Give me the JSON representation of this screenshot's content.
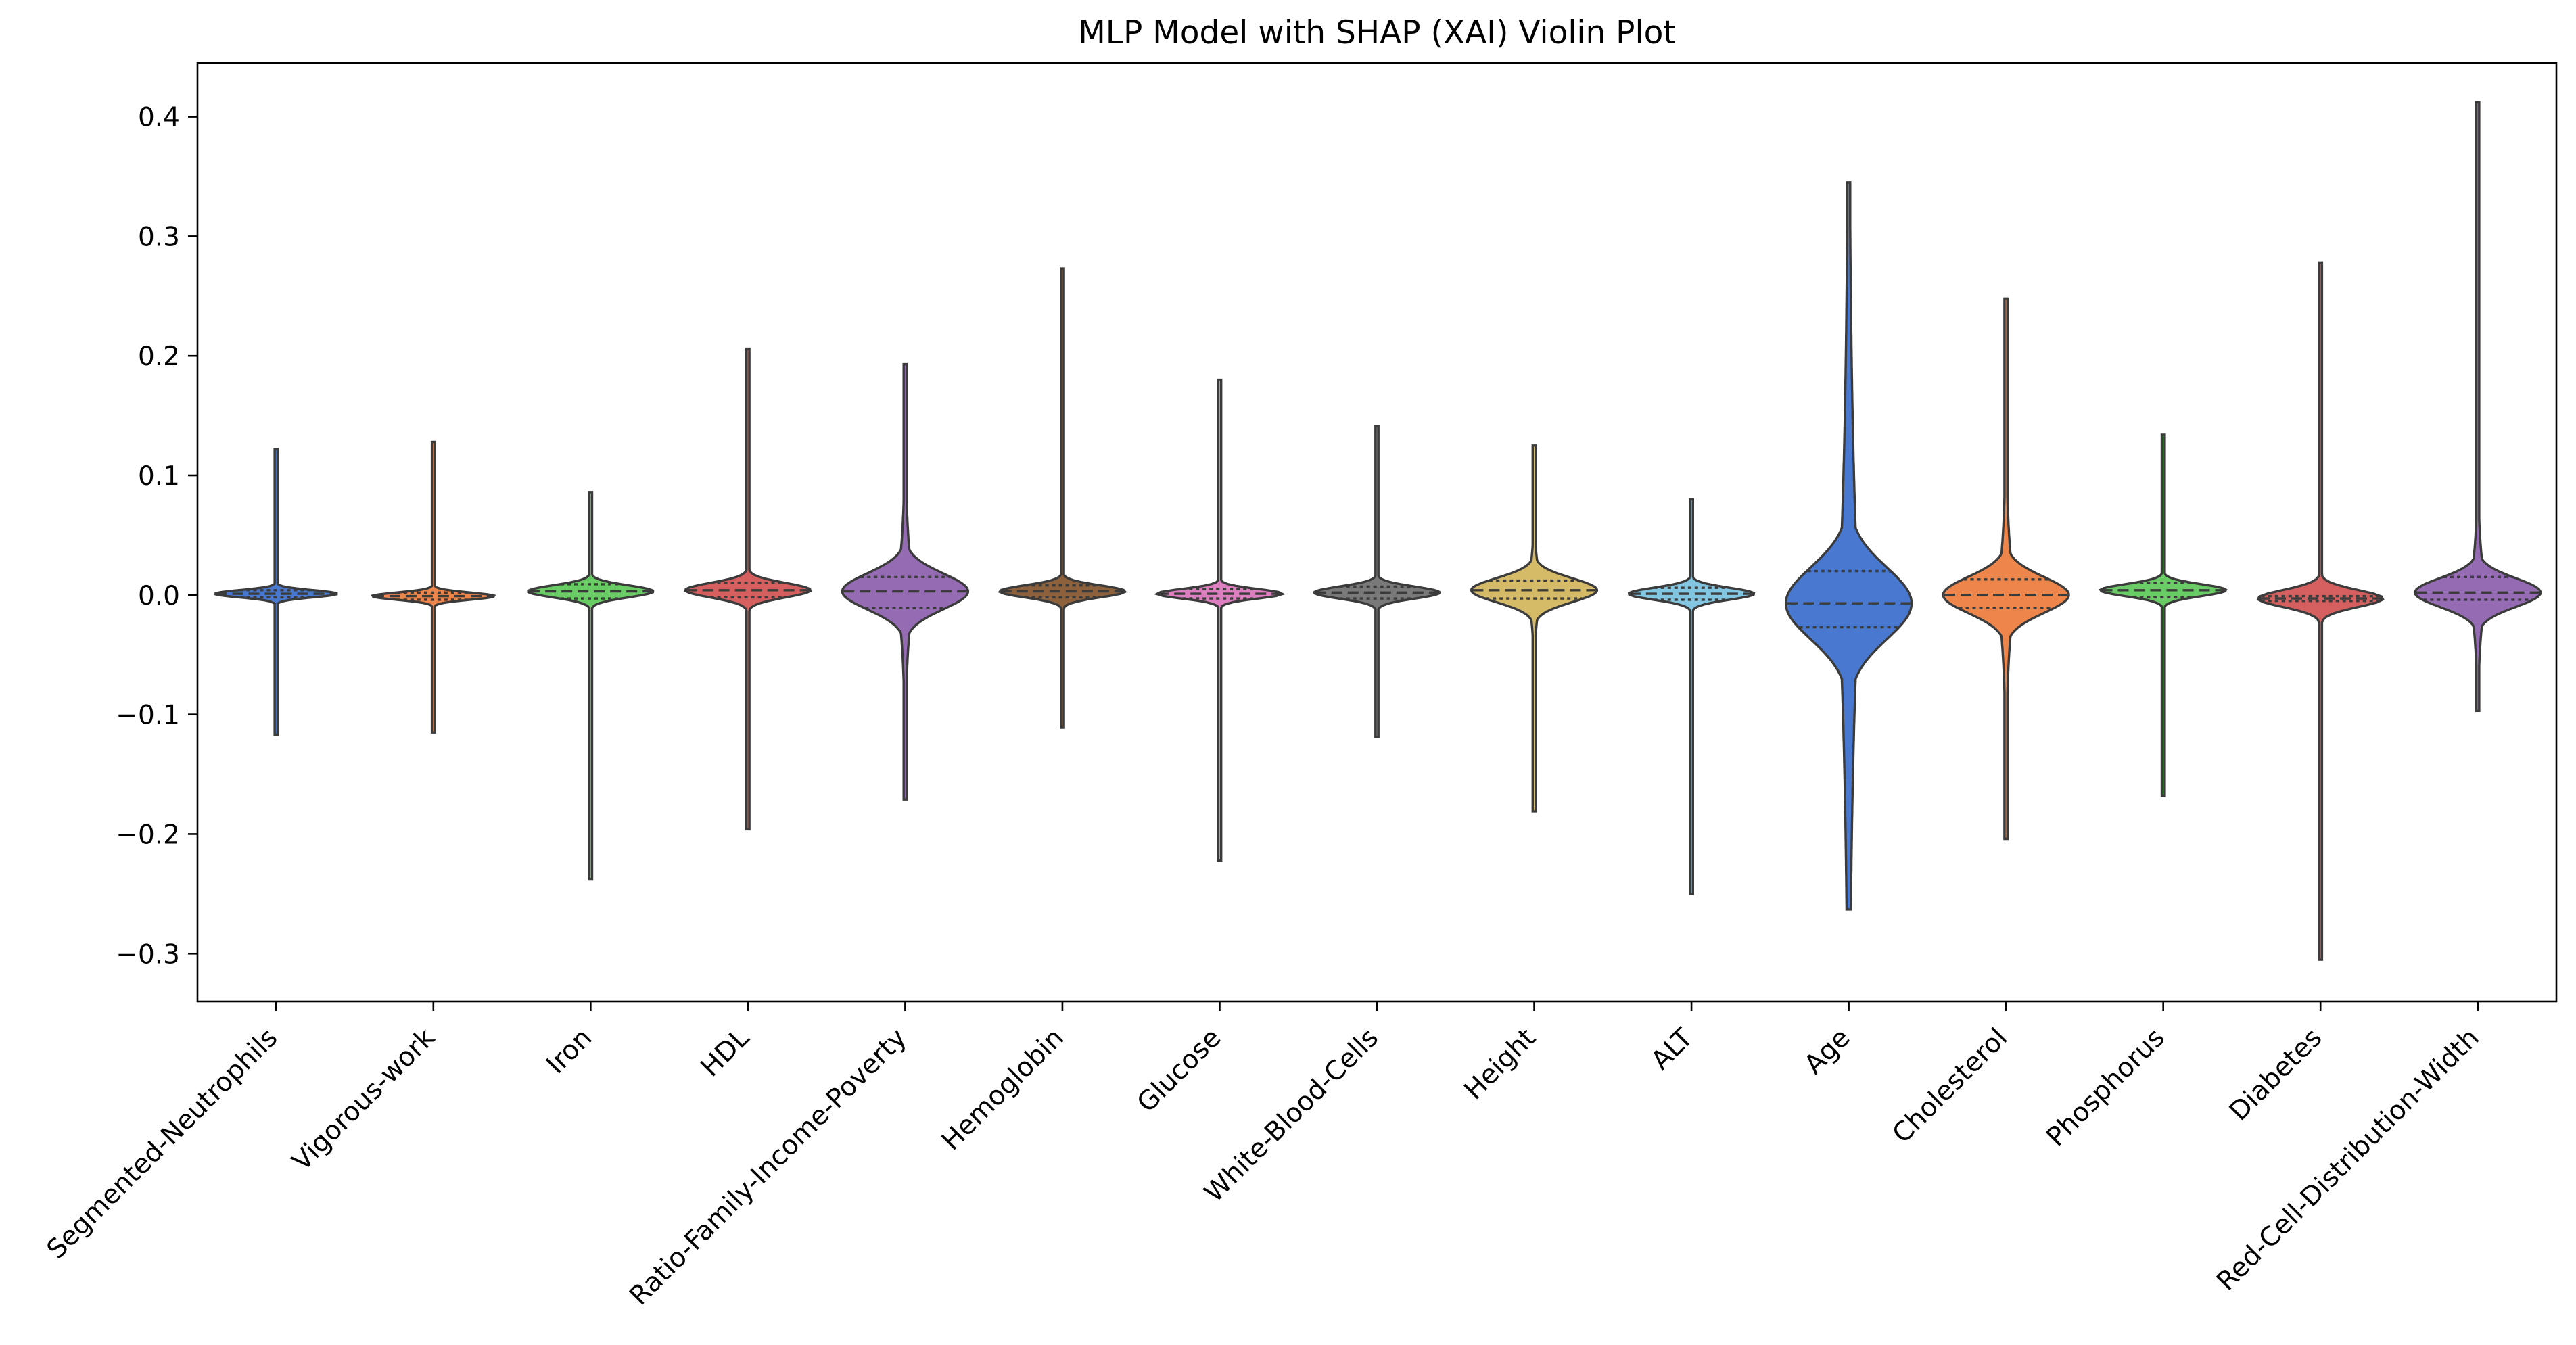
{
  "chart_data": {
    "type": "violin",
    "title": "MLP Model with SHAP (XAI) Violin Plot",
    "xlabel": "",
    "ylabel": "",
    "ylim": [
      -0.34,
      0.445
    ],
    "yticks": [
      -0.3,
      -0.2,
      -0.1,
      0.0,
      0.1,
      0.2,
      0.3,
      0.4
    ],
    "ytick_labels": [
      "−0.3",
      "−0.2",
      "−0.1",
      "0.0",
      "0.1",
      "0.2",
      "0.3",
      "0.4"
    ],
    "grid": false,
    "legend": "none",
    "inner": "quartile",
    "categories": [
      "Segmented-Neutrophils",
      "Vigorous-work",
      "Iron",
      "HDL",
      "Ratio-Family-Income-Poverty",
      "Hemoglobin",
      "Glucose",
      "White-Blood-Cells",
      "Height",
      "ALT",
      "Age",
      "Cholesterol",
      "Phosphorus",
      "Diabetes",
      "Red-Cell-Distribution-Width"
    ],
    "series": [
      {
        "category": "Segmented-Neutrophils",
        "color": "#4878d0",
        "min": -0.117,
        "max": 0.122,
        "q1": -0.002,
        "median": 0.001,
        "q3": 0.004,
        "halfwidth": 0.39,
        "spread": 0.003,
        "skew": 0.4
      },
      {
        "category": "Vigorous-work",
        "color": "#ee854a",
        "min": -0.115,
        "max": 0.128,
        "q1": -0.004,
        "median": -0.001,
        "q3": 0.002,
        "halfwidth": 0.39,
        "spread": 0.003,
        "skew": 0.4
      },
      {
        "category": "Iron",
        "color": "#6acc64",
        "min": -0.238,
        "max": 0.086,
        "q1": -0.003,
        "median": 0.003,
        "q3": 0.009,
        "halfwidth": 0.4,
        "spread": 0.005,
        "skew": 0.5
      },
      {
        "category": "HDL",
        "color": "#d65f5f",
        "min": -0.196,
        "max": 0.206,
        "q1": -0.002,
        "median": 0.004,
        "q3": 0.01,
        "halfwidth": 0.4,
        "spread": 0.006,
        "skew": 0.6
      },
      {
        "category": "Ratio-Family-Income-Poverty",
        "color": "#956cb4",
        "min": -0.171,
        "max": 0.193,
        "q1": -0.011,
        "median": 0.003,
        "q3": 0.015,
        "halfwidth": 0.4,
        "spread": 0.015,
        "skew": 1.2
      },
      {
        "category": "Hemoglobin",
        "color": "#8c613c",
        "min": -0.111,
        "max": 0.273,
        "q1": -0.002,
        "median": 0.003,
        "q3": 0.008,
        "halfwidth": 0.4,
        "spread": 0.005,
        "skew": 0.6
      },
      {
        "category": "Glucose",
        "color": "#dc7ec0",
        "min": -0.222,
        "max": 0.18,
        "q1": -0.003,
        "median": 0.001,
        "q3": 0.005,
        "halfwidth": 0.4,
        "spread": 0.004,
        "skew": 0.5
      },
      {
        "category": "White-Blood-Cells",
        "color": "#797979",
        "min": -0.119,
        "max": 0.141,
        "q1": -0.003,
        "median": 0.002,
        "q3": 0.007,
        "halfwidth": 0.4,
        "spread": 0.005,
        "skew": 0.6
      },
      {
        "category": "Height",
        "color": "#d5bb67",
        "min": -0.181,
        "max": 0.125,
        "q1": -0.003,
        "median": 0.004,
        "q3": 0.012,
        "halfwidth": 0.4,
        "spread": 0.01,
        "skew": 0.9
      },
      {
        "category": "ALT",
        "color": "#82c6e2",
        "min": -0.25,
        "max": 0.08,
        "q1": -0.004,
        "median": 0.001,
        "q3": 0.006,
        "halfwidth": 0.4,
        "spread": 0.005,
        "skew": 0.6
      },
      {
        "category": "Age",
        "color": "#4878d0",
        "min": -0.263,
        "max": 0.345,
        "q1": -0.027,
        "median": -0.007,
        "q3": 0.02,
        "halfwidth": 0.4,
        "spread": 0.03,
        "skew": 2.5
      },
      {
        "category": "Cholesterol",
        "color": "#ee854a",
        "min": -0.204,
        "max": 0.248,
        "q1": -0.011,
        "median": 0.0,
        "q3": 0.013,
        "halfwidth": 0.4,
        "spread": 0.015,
        "skew": 1.3
      },
      {
        "category": "Phosphorus",
        "color": "#6acc64",
        "min": -0.168,
        "max": 0.134,
        "q1": -0.002,
        "median": 0.004,
        "q3": 0.01,
        "halfwidth": 0.4,
        "spread": 0.005,
        "skew": 0.5
      },
      {
        "category": "Diabetes",
        "color": "#d65f5f",
        "min": -0.305,
        "max": 0.278,
        "q1": -0.005,
        "median": -0.003,
        "q3": -0.001,
        "halfwidth": 0.4,
        "spread": 0.007,
        "skew": 0.6
      },
      {
        "category": "Red-Cell-Distribution-Width",
        "color": "#956cb4",
        "min": -0.097,
        "max": 0.412,
        "q1": -0.004,
        "median": 0.002,
        "q3": 0.015,
        "halfwidth": 0.4,
        "spread": 0.012,
        "skew": 1.2
      }
    ]
  }
}
